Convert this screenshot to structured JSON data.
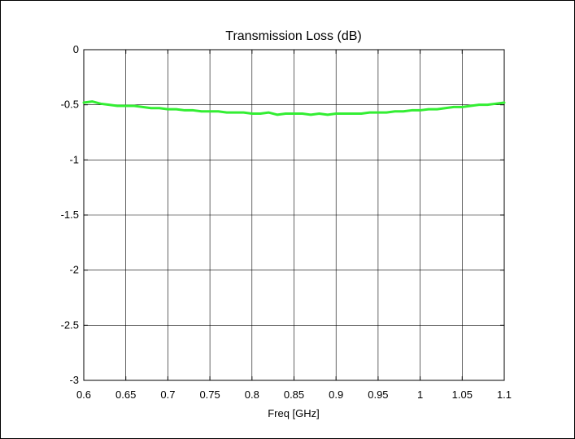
{
  "chart_data": {
    "type": "line",
    "title": "Transmission Loss (dB)",
    "xlabel": "Freq [GHz]",
    "ylabel": "",
    "xlim": [
      0.6,
      1.1
    ],
    "ylim": [
      -3,
      0
    ],
    "xticks": [
      0.6,
      0.65,
      0.7,
      0.75,
      0.8,
      0.85,
      0.9,
      0.95,
      1,
      1.05,
      1.1
    ],
    "xtick_labels": [
      "0.6",
      "0.65",
      "0.7",
      "0.75",
      "0.8",
      "0.85",
      "0.9",
      "0.95",
      "1",
      "1.05",
      "1.1"
    ],
    "yticks": [
      0,
      -0.5,
      -1,
      -1.5,
      -2,
      -2.5,
      -3
    ],
    "ytick_labels": [
      "0",
      "-0.5",
      "-1",
      "-1.5",
      "-2",
      "-2.5",
      "-3"
    ],
    "grid": true,
    "line_color": "#33ee33",
    "series": [
      {
        "x": [
          0.6,
          0.61,
          0.62,
          0.63,
          0.64,
          0.65,
          0.66,
          0.67,
          0.68,
          0.69,
          0.7,
          0.71,
          0.72,
          0.73,
          0.74,
          0.75,
          0.76,
          0.77,
          0.78,
          0.79,
          0.8,
          0.81,
          0.82,
          0.83,
          0.84,
          0.85,
          0.86,
          0.87,
          0.88,
          0.89,
          0.9,
          0.91,
          0.92,
          0.93,
          0.94,
          0.95,
          0.96,
          0.97,
          0.98,
          0.99,
          1.0,
          1.01,
          1.02,
          1.03,
          1.04,
          1.05,
          1.06,
          1.07,
          1.08,
          1.09,
          1.1
        ],
        "values": [
          -0.48,
          -0.47,
          -0.49,
          -0.5,
          -0.51,
          -0.51,
          -0.51,
          -0.52,
          -0.53,
          -0.53,
          -0.54,
          -0.54,
          -0.55,
          -0.55,
          -0.56,
          -0.56,
          -0.56,
          -0.57,
          -0.57,
          -0.57,
          -0.58,
          -0.58,
          -0.57,
          -0.59,
          -0.58,
          -0.58,
          -0.58,
          -0.59,
          -0.58,
          -0.59,
          -0.58,
          -0.58,
          -0.58,
          -0.58,
          -0.57,
          -0.57,
          -0.57,
          -0.56,
          -0.56,
          -0.55,
          -0.55,
          -0.54,
          -0.54,
          -0.53,
          -0.52,
          -0.52,
          -0.51,
          -0.5,
          -0.5,
          -0.49,
          -0.48
        ]
      }
    ]
  }
}
